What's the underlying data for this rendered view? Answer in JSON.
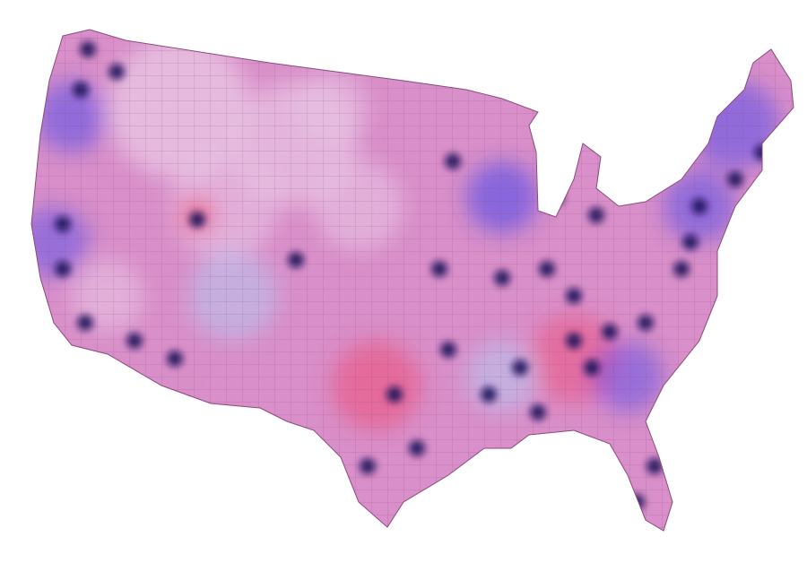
{
  "map": {
    "colors": {
      "background": "#ffffff",
      "base": "#d98fc9",
      "light": "#e8c4e4",
      "pale_blue": "#b9c3ee",
      "red": "#f0466e",
      "blue": "#3a3ef0",
      "dark": "#1a0f5a",
      "border": "#8a4a7a"
    }
  }
}
